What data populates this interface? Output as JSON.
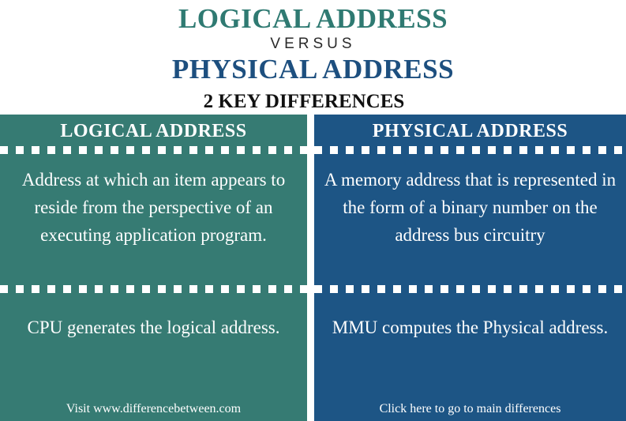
{
  "title": {
    "line1": "LOGICAL ADDRESS",
    "versus": "VERSUS",
    "line2": "PHYSICAL ADDRESS"
  },
  "subtitle": "2 KEY DIFFERENCES",
  "columns": [
    {
      "heading": "LOGICAL ADDRESS",
      "row1": "Address at which an item appears to reside from the perspective of an executing application program.",
      "row2": "CPU generates the logical address.",
      "footer": "Visit www.differencebetween.com"
    },
    {
      "heading": "PHYSICAL ADDRESS",
      "row1": "A memory address that is represented in the form of a binary number on the address bus circuitry",
      "row2": "MMU computes the Physical address.",
      "footer": "Click here to go to main differences"
    }
  ],
  "colors": {
    "logical": "#367b73",
    "physical": "#1d5585",
    "logical_title": "#2f7a72",
    "physical_title": "#1d4f7f"
  }
}
